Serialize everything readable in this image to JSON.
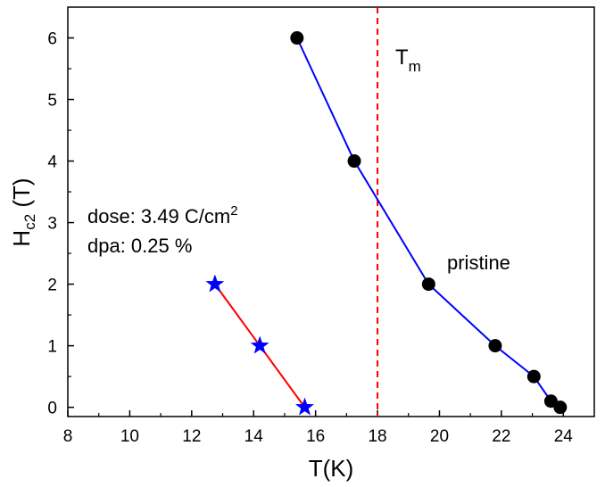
{
  "chart_data": {
    "type": "scatter",
    "xlabel": "T(K)",
    "ylabel": {
      "main": "H",
      "sub": "c2",
      "rest": " (T)"
    },
    "xlim": [
      8,
      25
    ],
    "ylim": [
      -0.15,
      6.5
    ],
    "xticks": [
      8,
      10,
      12,
      14,
      16,
      18,
      20,
      22,
      24
    ],
    "yticks": [
      0,
      1,
      2,
      3,
      4,
      5,
      6
    ],
    "grid": false,
    "series": [
      {
        "name": "pristine",
        "marker": "circle",
        "line_color": "#0000ff",
        "marker_color": "#000000",
        "x": [
          15.4,
          17.25,
          19.65,
          21.8,
          23.05,
          23.6,
          23.9
        ],
        "y": [
          6,
          4,
          2,
          1,
          0.5,
          0.1,
          0
        ]
      },
      {
        "name": "dose: 3.49 C/cm2",
        "marker": "star",
        "line_color": "#ff0000",
        "marker_color": "#0000ff",
        "x": [
          12.75,
          14.2,
          15.65
        ],
        "y": [
          2,
          1,
          0
        ]
      }
    ],
    "vline": {
      "x": 18,
      "color": "#ff0000",
      "style": "dashed",
      "label": "T",
      "label_sub": "m"
    },
    "annotations": {
      "pristine": "pristine",
      "dose_main": "dose: 3.49 C/cm",
      "dose_sup": "2",
      "dpa": "dpa: 0.25 %"
    }
  }
}
